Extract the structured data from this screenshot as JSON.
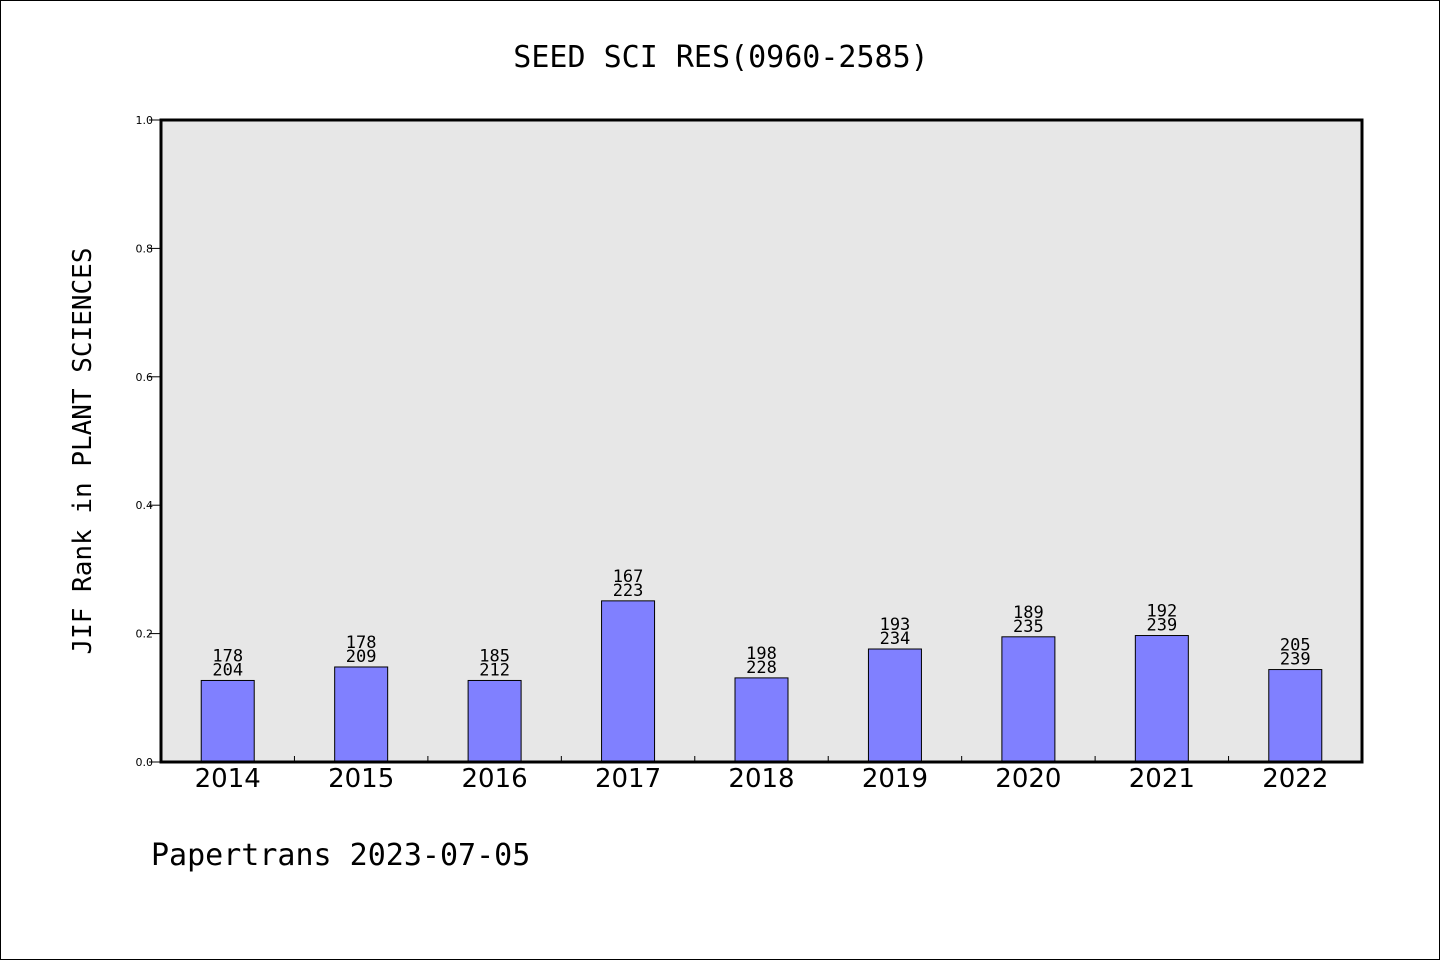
{
  "colors": {
    "plot_background": "#e7e7e7",
    "bar_fill": "#8080ff",
    "bar_stroke": "#000000",
    "axis": "#000000",
    "text": "#000000"
  },
  "footer": "Papertrans 2023-07-05",
  "chart_data": {
    "type": "bar",
    "title": "SEED SCI RES(0960-2585)",
    "xlabel": "",
    "ylabel": "JIF Rank in PLANT SCIENCES",
    "ylim": [
      0,
      1.0
    ],
    "yticks": [
      "0.0",
      "0.2",
      "0.4",
      "0.6",
      "0.8",
      "1.0"
    ],
    "grid": false,
    "categories": [
      "2014",
      "2015",
      "2016",
      "2017",
      "2018",
      "2019",
      "2020",
      "2021",
      "2022"
    ],
    "values": [
      0.127,
      0.148,
      0.127,
      0.251,
      0.131,
      0.176,
      0.195,
      0.197,
      0.144
    ],
    "rank": [
      "178",
      "178",
      "185",
      "167",
      "198",
      "193",
      "189",
      "192",
      "205"
    ],
    "total": [
      "204",
      "209",
      "212",
      "223",
      "228",
      "234",
      "235",
      "239",
      "239"
    ]
  }
}
